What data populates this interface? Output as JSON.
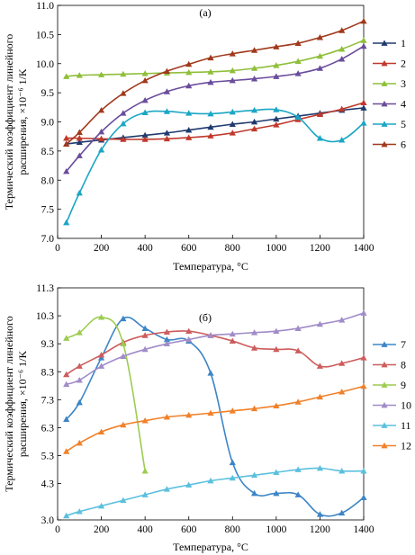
{
  "chart_data": [
    {
      "type": "line",
      "title": "(а)",
      "xlabel": "Температура, °C",
      "ylabel_line1": "Термический коэффициент линейного",
      "ylabel_line2": "расширения, ×10⁻⁶ 1/K",
      "xlim": [
        0,
        1400
      ],
      "ylim": [
        7.0,
        11.0
      ],
      "xticks": [
        "0",
        "200",
        "400",
        "600",
        "800",
        "1000",
        "1200",
        "1400"
      ],
      "yticks": [
        "7.0",
        "7.5",
        "8.0",
        "8.5",
        "9.0",
        "9.5",
        "10.0",
        "10.5",
        "11.0"
      ],
      "legend_position": "right",
      "series": [
        {
          "name": "1",
          "color": "#1f3a6e",
          "x": [
            40,
            100,
            200,
            300,
            400,
            500,
            600,
            700,
            800,
            900,
            1000,
            1100,
            1200,
            1300,
            1400
          ],
          "y": [
            8.62,
            8.65,
            8.69,
            8.73,
            8.77,
            8.81,
            8.86,
            8.91,
            8.96,
            9.0,
            9.05,
            9.1,
            9.15,
            9.2,
            9.24
          ]
        },
        {
          "name": "2",
          "color": "#c0392b",
          "x": [
            40,
            100,
            200,
            300,
            400,
            500,
            600,
            700,
            800,
            900,
            1000,
            1100,
            1200,
            1300,
            1400
          ],
          "y": [
            8.72,
            8.72,
            8.71,
            8.7,
            8.7,
            8.71,
            8.73,
            8.76,
            8.81,
            8.88,
            8.95,
            9.04,
            9.13,
            9.22,
            9.33
          ]
        },
        {
          "name": "3",
          "color": "#8fbf3a",
          "x": [
            40,
            100,
            200,
            300,
            400,
            500,
            600,
            700,
            800,
            900,
            1000,
            1100,
            1200,
            1300,
            1400
          ],
          "y": [
            9.78,
            9.8,
            9.81,
            9.82,
            9.83,
            9.84,
            9.85,
            9.86,
            9.88,
            9.92,
            9.97,
            10.04,
            10.13,
            10.25,
            10.4
          ]
        },
        {
          "name": "4",
          "color": "#6a4c9c",
          "x": [
            40,
            100,
            200,
            300,
            400,
            500,
            600,
            700,
            800,
            900,
            1000,
            1100,
            1200,
            1300,
            1400
          ],
          "y": [
            8.15,
            8.42,
            8.83,
            9.15,
            9.37,
            9.52,
            9.62,
            9.68,
            9.71,
            9.74,
            9.78,
            9.83,
            9.92,
            10.08,
            10.3
          ]
        },
        {
          "name": "5",
          "color": "#1ba6c4",
          "x": [
            40,
            100,
            200,
            300,
            400,
            500,
            600,
            700,
            800,
            900,
            1000,
            1100,
            1200,
            1300,
            1400
          ],
          "y": [
            7.27,
            7.78,
            8.52,
            8.97,
            9.16,
            9.18,
            9.15,
            9.14,
            9.17,
            9.2,
            9.21,
            9.08,
            8.72,
            8.69,
            8.98
          ]
        },
        {
          "name": "6",
          "color": "#a0391c",
          "x": [
            40,
            100,
            200,
            300,
            400,
            500,
            600,
            700,
            800,
            900,
            1000,
            1100,
            1200,
            1300,
            1400
          ],
          "y": [
            8.62,
            8.82,
            9.2,
            9.49,
            9.71,
            9.87,
            9.99,
            10.1,
            10.17,
            10.23,
            10.29,
            10.35,
            10.45,
            10.57,
            10.73
          ]
        }
      ]
    },
    {
      "type": "line",
      "title": "(б)",
      "xlabel": "Температура, °C",
      "ylabel_line1": "Термический коэффициент линейного",
      "ylabel_line2": "расширения, ×10⁻⁶ 1/K",
      "xlim": [
        0,
        1400
      ],
      "ylim": [
        3.0,
        11.3
      ],
      "xticks": [
        "0",
        "200",
        "400",
        "600",
        "800",
        "1000",
        "1200",
        "1400"
      ],
      "yticks": [
        "3.0",
        "4.3",
        "5.3",
        "6.3",
        "7.3",
        "8.3",
        "9.3",
        "10.3",
        "11.3"
      ],
      "ytick_values": [
        3.0,
        4.3,
        5.3,
        6.3,
        7.3,
        8.3,
        9.3,
        10.3,
        11.3
      ],
      "legend_position": "right",
      "series": [
        {
          "name": "7",
          "color": "#3d85c6",
          "x": [
            40,
            100,
            200,
            300,
            400,
            500,
            600,
            700,
            800,
            900,
            1000,
            1100,
            1200,
            1300,
            1400
          ],
          "y": [
            6.6,
            7.2,
            8.8,
            10.2,
            9.85,
            9.45,
            9.4,
            8.25,
            5.05,
            3.95,
            3.95,
            3.9,
            3.2,
            3.25,
            3.8
          ]
        },
        {
          "name": "8",
          "color": "#cd5c5c",
          "x": [
            40,
            100,
            200,
            300,
            400,
            500,
            600,
            700,
            800,
            900,
            1000,
            1100,
            1200,
            1300,
            1400
          ],
          "y": [
            8.2,
            8.5,
            8.9,
            9.35,
            9.6,
            9.72,
            9.75,
            9.6,
            9.4,
            9.15,
            9.1,
            9.05,
            8.5,
            8.6,
            8.8
          ]
        },
        {
          "name": "9",
          "color": "#9ccc50",
          "x": [
            40,
            100,
            200,
            300,
            400
          ],
          "y": [
            9.5,
            9.7,
            10.25,
            9.3,
            4.75
          ]
        },
        {
          "name": "10",
          "color": "#a08cc8",
          "x": [
            40,
            100,
            200,
            300,
            400,
            500,
            600,
            700,
            800,
            900,
            1000,
            1100,
            1200,
            1300,
            1400
          ],
          "y": [
            7.85,
            8.0,
            8.5,
            8.85,
            9.1,
            9.3,
            9.45,
            9.6,
            9.65,
            9.7,
            9.75,
            9.85,
            10.0,
            10.15,
            10.4
          ]
        },
        {
          "name": "11",
          "color": "#5bc0de",
          "x": [
            40,
            100,
            200,
            300,
            400,
            500,
            600,
            700,
            800,
            900,
            1000,
            1100,
            1200,
            1300,
            1400
          ],
          "y": [
            3.15,
            3.3,
            3.5,
            3.7,
            3.9,
            4.1,
            4.25,
            4.4,
            4.5,
            4.6,
            4.7,
            4.8,
            4.85,
            4.75,
            4.75
          ]
        },
        {
          "name": "12",
          "color": "#f0812a",
          "x": [
            40,
            100,
            200,
            300,
            400,
            500,
            600,
            700,
            800,
            900,
            1000,
            1100,
            1200,
            1300,
            1400
          ],
          "y": [
            5.45,
            5.75,
            6.15,
            6.4,
            6.55,
            6.68,
            6.75,
            6.82,
            6.9,
            6.98,
            7.08,
            7.22,
            7.4,
            7.58,
            7.78
          ]
        }
      ]
    }
  ]
}
